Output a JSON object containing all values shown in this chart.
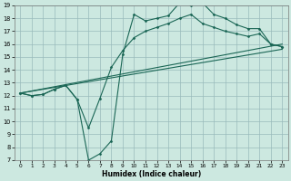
{
  "xlabel": "Humidex (Indice chaleur)",
  "bg_color": "#cce8e0",
  "grid_color": "#99bbbb",
  "line_color": "#1a6655",
  "xlim": [
    -0.5,
    23.5
  ],
  "ylim": [
    7,
    19
  ],
  "xticks": [
    0,
    1,
    2,
    3,
    4,
    5,
    6,
    7,
    8,
    9,
    10,
    11,
    12,
    13,
    14,
    15,
    16,
    17,
    18,
    19,
    20,
    21,
    22,
    23
  ],
  "yticks": [
    7,
    8,
    9,
    10,
    11,
    12,
    13,
    14,
    15,
    16,
    17,
    18,
    19
  ],
  "line1_x": [
    0,
    1,
    2,
    3,
    4,
    5,
    6,
    7,
    8,
    9,
    10,
    11,
    12,
    13,
    14,
    15,
    16,
    17,
    18,
    19,
    20,
    21,
    22,
    23
  ],
  "line1_y": [
    12.2,
    12.0,
    12.1,
    12.5,
    12.8,
    11.7,
    7.0,
    7.5,
    8.5,
    15.2,
    18.3,
    17.8,
    18.0,
    18.2,
    19.2,
    19.0,
    19.2,
    18.3,
    18.0,
    17.5,
    17.2,
    17.2,
    16.0,
    15.8
  ],
  "line2_x": [
    0,
    1,
    2,
    3,
    4,
    5,
    6,
    7,
    8,
    9,
    10,
    11,
    12,
    13,
    14,
    15,
    16,
    17,
    18,
    19,
    20,
    21,
    22,
    23
  ],
  "line2_y": [
    12.2,
    12.0,
    12.1,
    12.5,
    12.8,
    11.7,
    9.5,
    11.8,
    14.2,
    15.5,
    16.5,
    17.0,
    17.3,
    17.6,
    18.0,
    18.3,
    17.6,
    17.3,
    17.0,
    16.8,
    16.6,
    16.8,
    16.0,
    15.8
  ],
  "line3_x": [
    0,
    23
  ],
  "line3_y": [
    12.2,
    16.0
  ],
  "line4_x": [
    0,
    23
  ],
  "line4_y": [
    12.2,
    15.6
  ]
}
